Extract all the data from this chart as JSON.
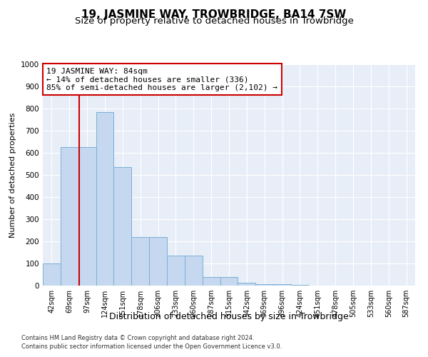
{
  "title": "19, JASMINE WAY, TROWBRIDGE, BA14 7SW",
  "subtitle": "Size of property relative to detached houses in Trowbridge",
  "xlabel": "Distribution of detached houses by size in Trowbridge",
  "ylabel": "Number of detached properties",
  "footer_line1": "Contains HM Land Registry data © Crown copyright and database right 2024.",
  "footer_line2": "Contains public sector information licensed under the Open Government Licence v3.0.",
  "annotation_line1": "19 JASMINE WAY: 84sqm",
  "annotation_line2": "← 14% of detached houses are smaller (336)",
  "annotation_line3": "85% of semi-detached houses are larger (2,102) →",
  "bar_color": "#c5d8f0",
  "bar_edge_color": "#7bafd4",
  "vline_color": "#cc0000",
  "annotation_box_color": "#cc0000",
  "categories": [
    "42sqm",
    "69sqm",
    "97sqm",
    "124sqm",
    "151sqm",
    "178sqm",
    "206sqm",
    "233sqm",
    "260sqm",
    "287sqm",
    "315sqm",
    "342sqm",
    "369sqm",
    "396sqm",
    "424sqm",
    "451sqm",
    "478sqm",
    "505sqm",
    "533sqm",
    "560sqm",
    "587sqm"
  ],
  "values": [
    100,
    625,
    625,
    785,
    535,
    220,
    220,
    135,
    135,
    40,
    40,
    12,
    8,
    5,
    2,
    1,
    1,
    0,
    0,
    0,
    0
  ],
  "ylim": [
    0,
    1000
  ],
  "yticks": [
    0,
    100,
    200,
    300,
    400,
    500,
    600,
    700,
    800,
    900,
    1000
  ],
  "bg_color": "#e8eef8",
  "grid_color": "#ffffff",
  "title_fontsize": 11,
  "subtitle_fontsize": 9.5,
  "xlabel_fontsize": 9,
  "ylabel_fontsize": 8,
  "annotation_fontsize": 8
}
